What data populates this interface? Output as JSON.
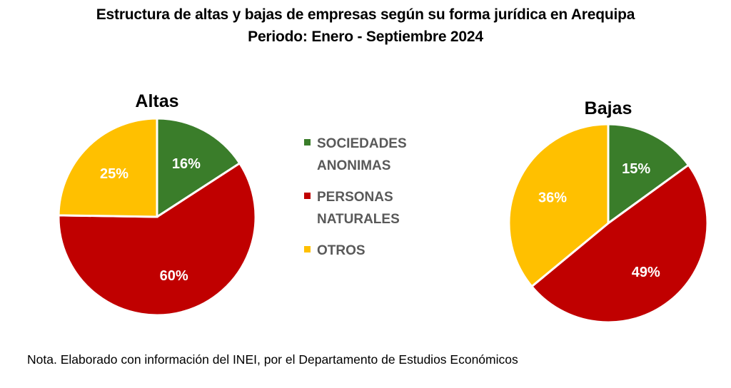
{
  "header": {
    "title": "Estructura de altas y bajas de empresas según su forma jurídica en Arequipa",
    "subtitle": "Periodo: Enero - Septiembre 2024"
  },
  "chart_data": [
    {
      "type": "pie",
      "title": "Altas",
      "categories": [
        "SOCIEDADES ANONIMAS",
        "PERSONAS NATURALES",
        "OTROS"
      ],
      "values": [
        16,
        60,
        25
      ],
      "labels": [
        "16%",
        "60%",
        "25%"
      ],
      "colors": [
        "#3a7d2a",
        "#c00000",
        "#ffc000"
      ]
    },
    {
      "type": "pie",
      "title": "Bajas",
      "categories": [
        "SOCIEDADES ANONIMAS",
        "PERSONAS NATURALES",
        "OTROS"
      ],
      "values": [
        15,
        49,
        36
      ],
      "labels": [
        "15%",
        "49%",
        "36%"
      ],
      "colors": [
        "#3a7d2a",
        "#c00000",
        "#ffc000"
      ]
    }
  ],
  "legend": {
    "items": [
      {
        "line1": "SOCIEDADES",
        "line2": "ANONIMAS",
        "color": "#3a7d2a"
      },
      {
        "line1": "PERSONAS",
        "line2": "NATURALES",
        "color": "#c00000"
      },
      {
        "line1": "OTROS",
        "line2": "",
        "color": "#ffc000"
      }
    ]
  },
  "note": "Nota. Elaborado con información del INEI, por el Departamento de Estudios Económicos"
}
